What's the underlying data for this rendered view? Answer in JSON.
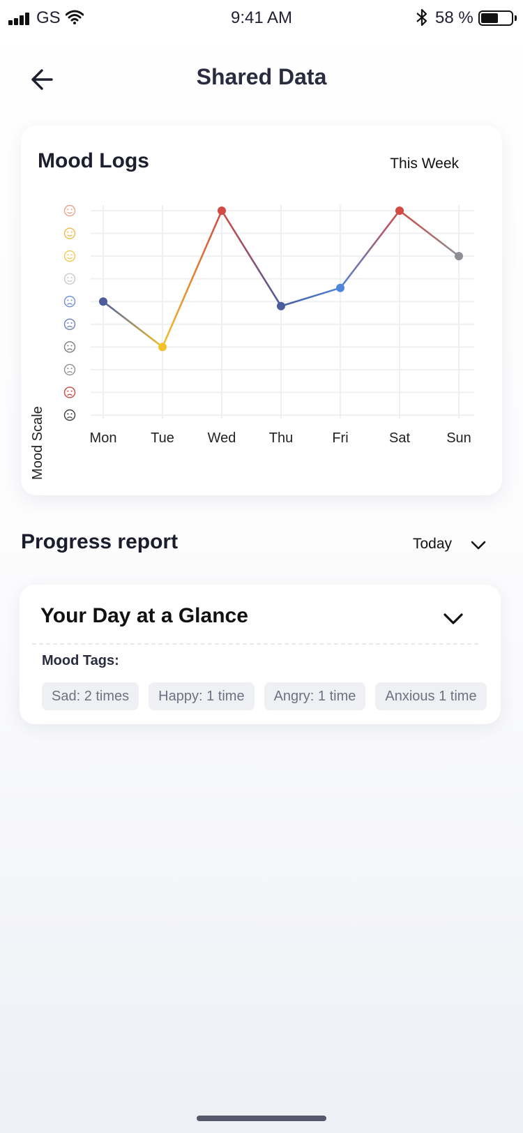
{
  "status_bar": {
    "carrier": "GS",
    "time": "9:41 AM",
    "battery_percent": "58 %",
    "battery_level": 0.58,
    "icons": [
      "signal-icon",
      "wifi-icon",
      "bluetooth-icon",
      "battery-icon"
    ]
  },
  "header": {
    "title": "Shared Data",
    "back_icon": "arrow-left-icon"
  },
  "mood_card": {
    "title": "Mood Logs",
    "range_label": "This Week"
  },
  "chart_data": {
    "type": "line",
    "title": "Mood Logs",
    "xlabel": "",
    "ylabel": "Mood Scale",
    "categories": [
      "Mon",
      "Tue",
      "Wed",
      "Thu",
      "Fri",
      "Sat",
      "Sun"
    ],
    "series": [
      {
        "values": [
          5,
          3,
          9,
          4.8,
          5.6,
          9,
          7
        ]
      }
    ],
    "point_colors": [
      "#4a5c9e",
      "#f2c12e",
      "#d24a43",
      "#4a5c9e",
      "#4f86d9",
      "#d24a43",
      "#8d8f94"
    ],
    "ylim": [
      0,
      9
    ],
    "y_tick_icons": [
      {
        "name": "mood-level-10-icon",
        "color": "#e8a48c"
      },
      {
        "name": "mood-level-9-icon",
        "color": "#f0b84a"
      },
      {
        "name": "mood-level-8-icon",
        "color": "#f5c650"
      },
      {
        "name": "mood-level-7-icon",
        "color": "#c9c9cc"
      },
      {
        "name": "mood-level-6-icon",
        "color": "#6f8ad8"
      },
      {
        "name": "mood-level-5-icon",
        "color": "#6a7fb8"
      },
      {
        "name": "mood-level-4-icon",
        "color": "#7a7c80"
      },
      {
        "name": "mood-level-3-icon",
        "color": "#8b8d90"
      },
      {
        "name": "mood-level-2-icon",
        "color": "#cc4a43"
      },
      {
        "name": "mood-level-1-icon",
        "color": "#3a3b40"
      }
    ],
    "grid": true,
    "legend": "none"
  },
  "progress": {
    "title": "Progress report",
    "period_label": "Today",
    "period_icon": "chevron-down-icon"
  },
  "glance": {
    "title": "Your Day at a Glance",
    "toggle_icon": "chevron-down-icon",
    "tags_label": "Mood Tags:",
    "tags": [
      "Sad: 2 times",
      "Happy: 1 time",
      "Angry: 1 time",
      "Anxious 1 time"
    ]
  }
}
